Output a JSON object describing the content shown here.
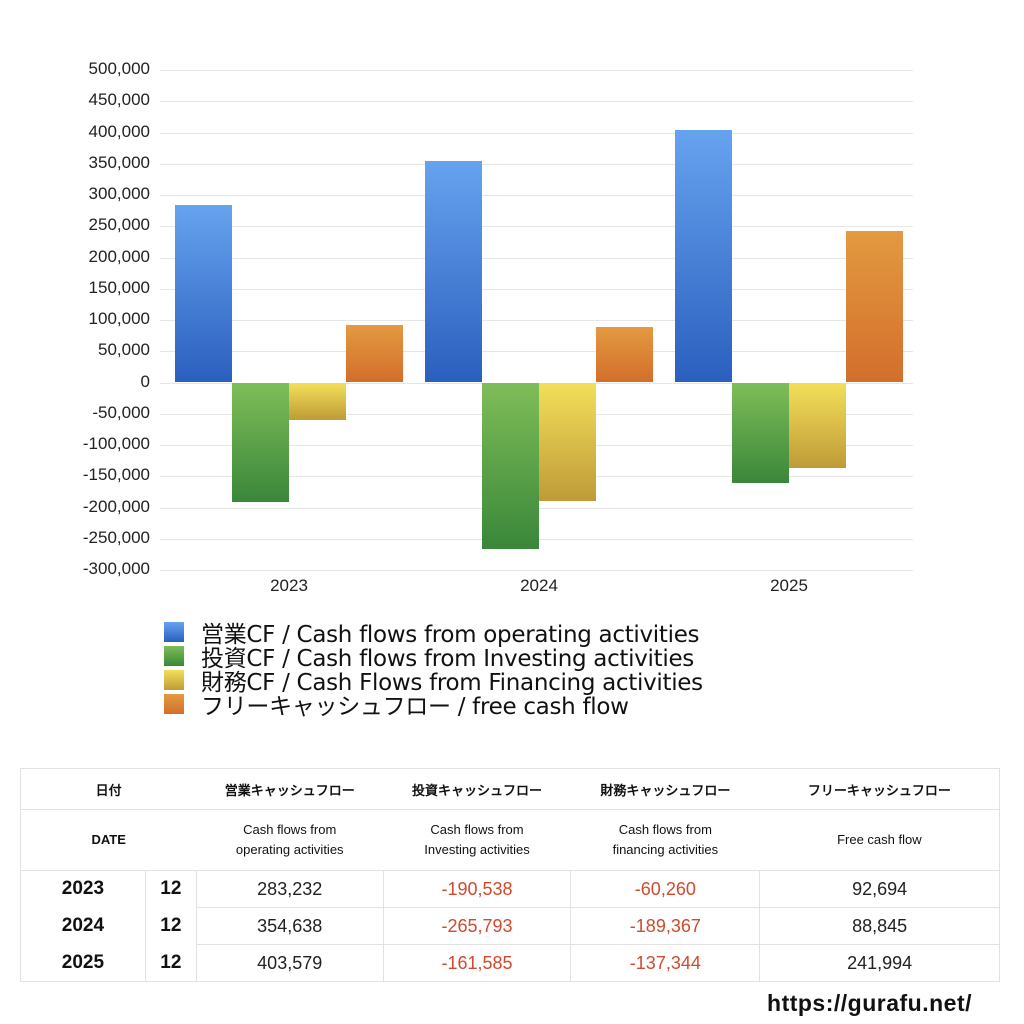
{
  "chart_data": {
    "type": "bar",
    "title": "",
    "xlabel": "",
    "ylabel": "",
    "categories": [
      "2023",
      "2024",
      "2025"
    ],
    "series": [
      {
        "name": "営業CF / Cash flows from operating activities",
        "values": [
          283232,
          354638,
          403579
        ],
        "color_top": "#66a3ef",
        "color_bottom": "#2b5fbe"
      },
      {
        "name": "投資CF / Cash flows from Investing activities",
        "values": [
          -190538,
          -265793,
          -161585
        ],
        "color_top": "#7fbd58",
        "color_bottom": "#3a873a"
      },
      {
        "name": "財務CF / Cash Flows from Financing activities",
        "values": [
          -60260,
          -189367,
          -137344
        ],
        "color_top": "#f3df5a",
        "color_bottom": "#bf9b38"
      },
      {
        "name": "フリーキャッシュフロー / free cash flow",
        "values": [
          92694,
          88845,
          241994
        ],
        "color_top": "#e39a40",
        "color_bottom": "#d36e2c"
      }
    ],
    "ylim": [
      -300000,
      500000
    ],
    "yticks": [
      "500,000",
      "450,000",
      "400,000",
      "350,000",
      "300,000",
      "250,000",
      "200,000",
      "150,000",
      "100,000",
      "50,000",
      "0",
      "-50,000",
      "-100,000",
      "-150,000",
      "-200,000",
      "-250,000",
      "-300,000"
    ],
    "grid": true,
    "legend_position": "bottom"
  },
  "legend": [
    {
      "label": "営業CF / Cash flows from operating activities",
      "color": "#4a84dc"
    },
    {
      "label": "投資CF / Cash flows from Investing activities",
      "color": "#5aa247"
    },
    {
      "label": "財務CF / Cash Flows from Financing activities",
      "color": "#dcc048"
    },
    {
      "label": "フリーキャッシュフロー / free cash flow",
      "color": "#dc8236"
    }
  ],
  "table": {
    "header_jp": {
      "date": "日付",
      "operating": "営業キャッシュフロー",
      "investing": "投資キャッシュフロー",
      "financing": "財務キャッシュフロー",
      "free": "フリーキャッシュフロー"
    },
    "header_en": {
      "date": "DATE",
      "operating_1": "Cash flows from",
      "operating_2": "operating activities",
      "investing_1": "Cash flows from",
      "investing_2": "Investing activities",
      "financing_1": "Cash flows from",
      "financing_2": "financing activities",
      "free": "Free cash flow"
    },
    "rows": [
      {
        "year": "2023",
        "month": "12",
        "operating": "283,232",
        "investing": "-190,538",
        "financing": "-60,260",
        "free": "92,694"
      },
      {
        "year": "2024",
        "month": "12",
        "operating": "354,638",
        "investing": "-265,793",
        "financing": "-189,367",
        "free": "88,845"
      },
      {
        "year": "2025",
        "month": "12",
        "operating": "403,579",
        "investing": "-161,585",
        "financing": "-137,344",
        "free": "241,994"
      }
    ],
    "negative_color": "#d04a2e"
  },
  "footer": {
    "url": "https://gurafu.net/"
  }
}
